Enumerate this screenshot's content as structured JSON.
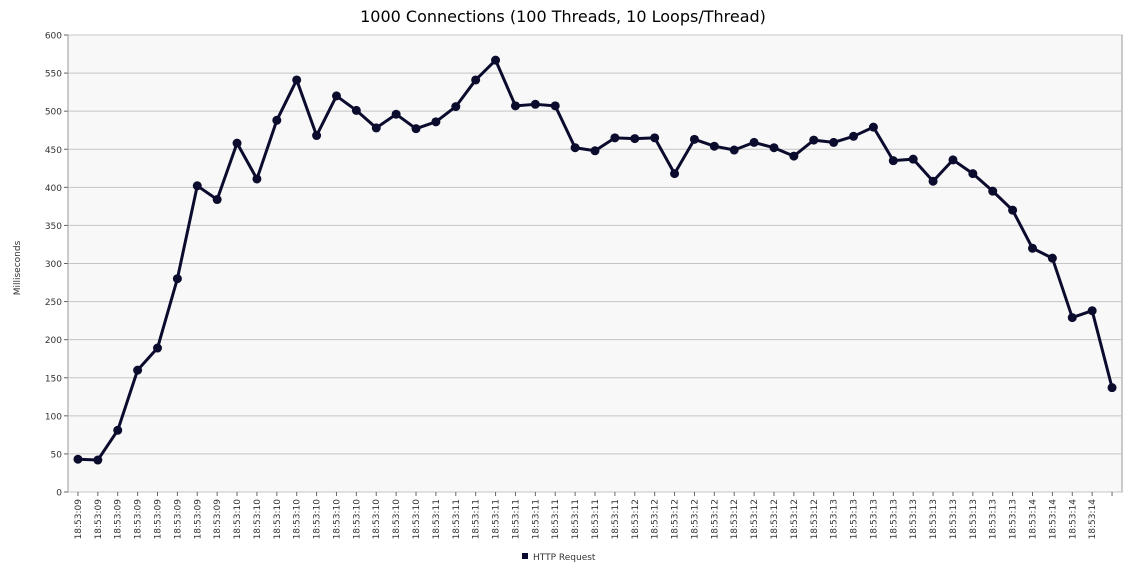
{
  "chart_data": {
    "type": "line",
    "title": "1000 Connections (100 Threads, 10 Loops/Thread)",
    "y_label": "Milliseconds",
    "categories": [
      "18:53:09",
      "18:53:09",
      "18:53:09",
      "18:53:09",
      "18:53:09",
      "18:53:09",
      "18:53:09",
      "18:53:09",
      "18:53:10",
      "18:53:10",
      "18:53:10",
      "18:53:10",
      "18:53:10",
      "18:53:10",
      "18:53:10",
      "18:53:10",
      "18:53:10",
      "18:53:10",
      "18:53:11",
      "18:53:11",
      "18:53:11",
      "18:53:11",
      "18:53:11",
      "18:53:11",
      "18:53:11",
      "18:53:11",
      "18:53:11",
      "18:53:11",
      "18:53:12",
      "18:53:12",
      "18:53:12",
      "18:53:12",
      "18:53:12",
      "18:53:12",
      "18:53:12",
      "18:53:12",
      "18:53:12",
      "18:53:12",
      "18:53:13",
      "18:53:13",
      "18:53:13",
      "18:53:13",
      "18:53:13",
      "18:53:13",
      "18:53:13",
      "18:53:13",
      "18:53:13",
      "18:53:13",
      "18:53:14",
      "18:53:14",
      "18:53:14",
      "18:53:14",
      null
    ],
    "series": [
      {
        "name": "HTTP Request",
        "color": "#0b0b2e",
        "values": [
          43,
          42,
          81,
          160,
          189,
          280,
          402,
          384,
          458,
          411,
          488,
          541,
          468,
          520,
          501,
          478,
          496,
          477,
          486,
          506,
          541,
          567,
          507,
          509,
          507,
          452,
          448,
          465,
          464,
          465,
          418,
          463,
          454,
          449,
          459,
          452,
          441,
          462,
          459,
          467,
          479,
          435,
          437,
          408,
          436,
          418,
          395,
          370,
          320,
          307,
          229,
          238,
          137
        ]
      }
    ],
    "ylim": [
      0,
      600
    ],
    "yticks": [
      0,
      50,
      100,
      150,
      200,
      250,
      300,
      350,
      400,
      450,
      500,
      550,
      600
    ],
    "grid": true,
    "legend": "bottom"
  }
}
